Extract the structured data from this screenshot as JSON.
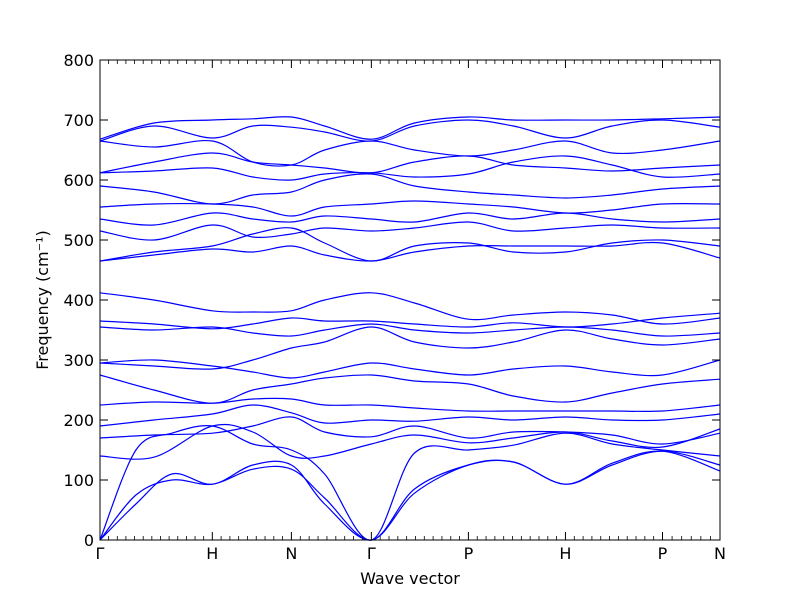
{
  "chart_data": {
    "type": "line",
    "xlabel": "Wave vector",
    "ylabel": "Frequency (cm⁻¹)",
    "ylim": [
      0,
      800
    ],
    "yticks": [
      0,
      100,
      200,
      300,
      400,
      500,
      600,
      700,
      800
    ],
    "xlim": [
      0,
      6.9
    ],
    "high_symmetry_points": [
      {
        "label": "Γ",
        "x": 0
      },
      {
        "label": "H",
        "x": 1.25
      },
      {
        "label": "N",
        "x": 2.13
      },
      {
        "label": "Γ",
        "x": 3.02
      },
      {
        "label": "P",
        "x": 4.1
      },
      {
        "label": "H",
        "x": 5.18
      },
      {
        "label": "P",
        "x": 6.26
      },
      {
        "label": "N",
        "x": 6.9
      }
    ],
    "line_color": "#0000ff",
    "grid": false,
    "legend": "none",
    "series": [
      {
        "x": [
          0,
          0.4,
          0.8,
          1.25,
          1.7,
          2.13,
          2.5,
          3.02,
          3.5,
          4.1,
          4.6,
          5.18,
          5.7,
          6.26,
          6.9
        ],
        "values": [
          0,
          75,
          100,
          93,
          118,
          118,
          70,
          0,
          85,
          125,
          130,
          93,
          125,
          148,
          125
        ]
      },
      {
        "x": [
          0,
          0.4,
          0.8,
          1.25,
          1.7,
          2.13,
          2.5,
          3.02,
          3.5,
          4.1,
          4.6,
          5.18,
          5.7,
          6.26,
          6.9
        ],
        "values": [
          0,
          60,
          110,
          93,
          125,
          125,
          60,
          0,
          78,
          125,
          130,
          93,
          128,
          148,
          115
        ]
      },
      {
        "x": [
          0,
          0.4,
          0.8,
          1.25,
          1.7,
          2.13,
          2.5,
          3.02,
          3.5,
          4.1,
          4.6,
          5.18,
          5.7,
          6.26,
          6.9
        ],
        "values": [
          0,
          150,
          178,
          190,
          160,
          150,
          110,
          0,
          145,
          150,
          158,
          178,
          160,
          150,
          140
        ]
      },
      {
        "x": [
          0,
          0.6,
          1.25,
          1.7,
          2.13,
          2.5,
          3.02,
          3.5,
          4.1,
          4.6,
          5.18,
          5.7,
          6.26,
          6.9
        ],
        "values": [
          140,
          138,
          190,
          180,
          140,
          140,
          160,
          175,
          162,
          170,
          180,
          165,
          155,
          185
        ]
      },
      {
        "x": [
          0,
          0.6,
          1.25,
          1.7,
          2.13,
          2.5,
          3.02,
          3.5,
          4.1,
          4.6,
          5.18,
          5.7,
          6.26,
          6.9
        ],
        "values": [
          170,
          175,
          178,
          190,
          205,
          180,
          172,
          190,
          170,
          180,
          180,
          175,
          160,
          178
        ]
      },
      {
        "x": [
          0,
          0.6,
          1.25,
          1.7,
          2.13,
          2.5,
          3.02,
          3.5,
          4.1,
          4.6,
          5.18,
          5.7,
          6.26,
          6.9
        ],
        "values": [
          190,
          200,
          210,
          225,
          212,
          195,
          200,
          198,
          205,
          200,
          205,
          200,
          200,
          210
        ]
      },
      {
        "x": [
          0,
          0.6,
          1.25,
          1.7,
          2.13,
          2.5,
          3.02,
          3.5,
          4.1,
          4.6,
          5.18,
          5.7,
          6.26,
          6.9
        ],
        "values": [
          225,
          230,
          228,
          235,
          235,
          225,
          225,
          220,
          215,
          215,
          215,
          215,
          215,
          225
        ]
      },
      {
        "x": [
          0,
          0.6,
          1.25,
          1.7,
          2.13,
          2.5,
          3.02,
          3.5,
          4.1,
          4.6,
          5.18,
          5.7,
          6.26,
          6.9
        ],
        "values": [
          275,
          250,
          228,
          250,
          260,
          270,
          275,
          265,
          260,
          240,
          230,
          245,
          260,
          268
        ]
      },
      {
        "x": [
          0,
          0.6,
          1.25,
          1.7,
          2.13,
          2.5,
          3.02,
          3.5,
          4.1,
          4.6,
          5.18,
          5.7,
          6.26,
          6.9
        ],
        "values": [
          295,
          300,
          290,
          280,
          270,
          280,
          295,
          285,
          275,
          285,
          290,
          280,
          275,
          300
        ]
      },
      {
        "x": [
          0,
          0.6,
          1.25,
          1.7,
          2.13,
          2.5,
          3.02,
          3.5,
          4.1,
          4.6,
          5.18,
          5.7,
          6.26,
          6.9
        ],
        "values": [
          295,
          290,
          285,
          300,
          320,
          330,
          355,
          330,
          320,
          330,
          350,
          335,
          325,
          335
        ]
      },
      {
        "x": [
          0,
          0.6,
          1.25,
          1.7,
          2.13,
          2.5,
          3.02,
          3.5,
          4.1,
          4.6,
          5.18,
          5.7,
          6.26,
          6.9
        ],
        "values": [
          355,
          350,
          355,
          345,
          340,
          350,
          360,
          350,
          345,
          350,
          355,
          350,
          340,
          345
        ]
      },
      {
        "x": [
          0,
          0.6,
          1.25,
          1.7,
          2.13,
          2.5,
          3.02,
          3.5,
          4.1,
          4.6,
          5.18,
          5.7,
          6.26,
          6.9
        ],
        "values": [
          365,
          360,
          352,
          360,
          370,
          365,
          365,
          360,
          355,
          362,
          355,
          360,
          370,
          378
        ]
      },
      {
        "x": [
          0,
          0.6,
          1.25,
          1.7,
          2.13,
          2.5,
          3.02,
          3.5,
          4.1,
          4.6,
          5.18,
          5.7,
          6.26,
          6.9
        ],
        "values": [
          412,
          400,
          382,
          380,
          382,
          400,
          412,
          395,
          368,
          375,
          380,
          375,
          360,
          370
        ]
      },
      {
        "x": [
          0,
          0.6,
          1.25,
          1.7,
          2.13,
          2.5,
          3.02,
          3.5,
          4.1,
          4.6,
          5.18,
          5.7,
          6.26,
          6.9
        ],
        "values": [
          465,
          475,
          485,
          480,
          490,
          475,
          465,
          480,
          490,
          490,
          490,
          490,
          495,
          470
        ]
      },
      {
        "x": [
          0,
          0.6,
          1.25,
          1.7,
          2.13,
          2.5,
          3.02,
          3.5,
          4.1,
          4.6,
          5.18,
          5.7,
          6.26,
          6.9
        ],
        "values": [
          465,
          480,
          490,
          510,
          520,
          495,
          465,
          490,
          495,
          480,
          480,
          495,
          500,
          490
        ]
      },
      {
        "x": [
          0,
          0.6,
          1.25,
          1.7,
          2.13,
          2.5,
          3.02,
          3.5,
          4.1,
          4.6,
          5.18,
          5.7,
          6.26,
          6.9
        ],
        "values": [
          515,
          500,
          525,
          505,
          510,
          520,
          515,
          520,
          530,
          515,
          520,
          525,
          520,
          520
        ]
      },
      {
        "x": [
          0,
          0.6,
          1.25,
          1.7,
          2.13,
          2.5,
          3.02,
          3.5,
          4.1,
          4.6,
          5.18,
          5.7,
          6.26,
          6.9
        ],
        "values": [
          535,
          525,
          545,
          535,
          530,
          540,
          535,
          530,
          545,
          535,
          545,
          535,
          530,
          535
        ]
      },
      {
        "x": [
          0,
          0.6,
          1.25,
          1.7,
          2.13,
          2.5,
          3.02,
          3.5,
          4.1,
          4.6,
          5.18,
          5.7,
          6.26,
          6.9
        ],
        "values": [
          555,
          560,
          560,
          555,
          540,
          555,
          560,
          565,
          560,
          555,
          545,
          550,
          560,
          560
        ]
      },
      {
        "x": [
          0,
          0.6,
          1.25,
          1.7,
          2.13,
          2.5,
          3.02,
          3.5,
          4.1,
          4.6,
          5.18,
          5.7,
          6.26,
          6.9
        ],
        "values": [
          590,
          580,
          560,
          575,
          580,
          600,
          610,
          590,
          580,
          575,
          570,
          575,
          585,
          590
        ]
      },
      {
        "x": [
          0,
          0.6,
          1.25,
          1.7,
          2.13,
          2.5,
          3.02,
          3.5,
          4.1,
          4.6,
          5.18,
          5.7,
          6.26,
          6.9
        ],
        "values": [
          612,
          615,
          620,
          605,
          600,
          610,
          612,
          605,
          610,
          630,
          640,
          625,
          605,
          610
        ]
      },
      {
        "x": [
          0,
          0.6,
          1.25,
          1.7,
          2.13,
          2.5,
          3.02,
          3.5,
          4.1,
          4.6,
          5.18,
          5.7,
          6.26,
          6.9
        ],
        "values": [
          612,
          630,
          645,
          630,
          625,
          620,
          612,
          630,
          640,
          625,
          620,
          615,
          620,
          625
        ]
      },
      {
        "x": [
          0,
          0.6,
          1.25,
          1.7,
          2.13,
          2.5,
          3.02,
          3.5,
          4.1,
          4.6,
          5.18,
          5.7,
          6.26,
          6.9
        ],
        "values": [
          665,
          655,
          665,
          630,
          625,
          650,
          665,
          650,
          640,
          650,
          665,
          645,
          650,
          665
        ]
      },
      {
        "x": [
          0,
          0.6,
          1.25,
          1.7,
          2.13,
          2.5,
          3.02,
          3.5,
          4.1,
          4.6,
          5.18,
          5.7,
          6.26,
          6.9
        ],
        "values": [
          665,
          690,
          670,
          690,
          688,
          680,
          665,
          690,
          700,
          690,
          670,
          690,
          700,
          688
        ]
      },
      {
        "x": [
          0,
          0.6,
          1.25,
          1.7,
          2.13,
          2.5,
          3.02,
          3.5,
          4.1,
          4.6,
          5.18,
          5.7,
          6.26,
          6.9
        ],
        "values": [
          668,
          695,
          700,
          702,
          705,
          690,
          668,
          695,
          705,
          700,
          700,
          700,
          702,
          705
        ]
      }
    ]
  }
}
